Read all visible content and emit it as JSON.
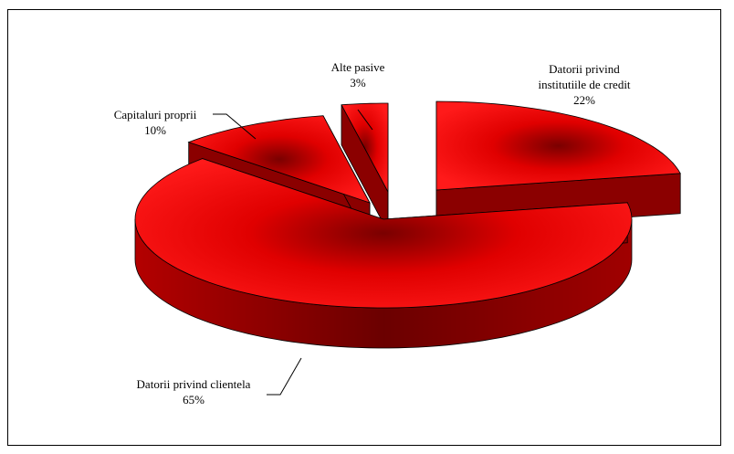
{
  "chart_data": {
    "type": "pie",
    "style": "3d-exploded",
    "title": "",
    "slices": [
      {
        "label": "Datorii privind institutiile de credit",
        "label_lines": [
          "Datorii privind",
          "institutiile de credit"
        ],
        "pct_text": "22%",
        "value": 22
      },
      {
        "label": "Datorii privind clientela",
        "label_lines": [
          "Datorii privind clientela"
        ],
        "pct_text": "65%",
        "value": 65
      },
      {
        "label": "Capitaluri proprii",
        "label_lines": [
          "Capitaluri proprii"
        ],
        "pct_text": "10%",
        "value": 10
      },
      {
        "label": "Alte pasive",
        "label_lines": [
          "Alte pasive"
        ],
        "pct_text": "3%",
        "value": 3
      }
    ],
    "colors": {
      "top": "#ff0000",
      "side": "#8b0000",
      "shade": "#5a0000",
      "outline": "#000000"
    }
  }
}
